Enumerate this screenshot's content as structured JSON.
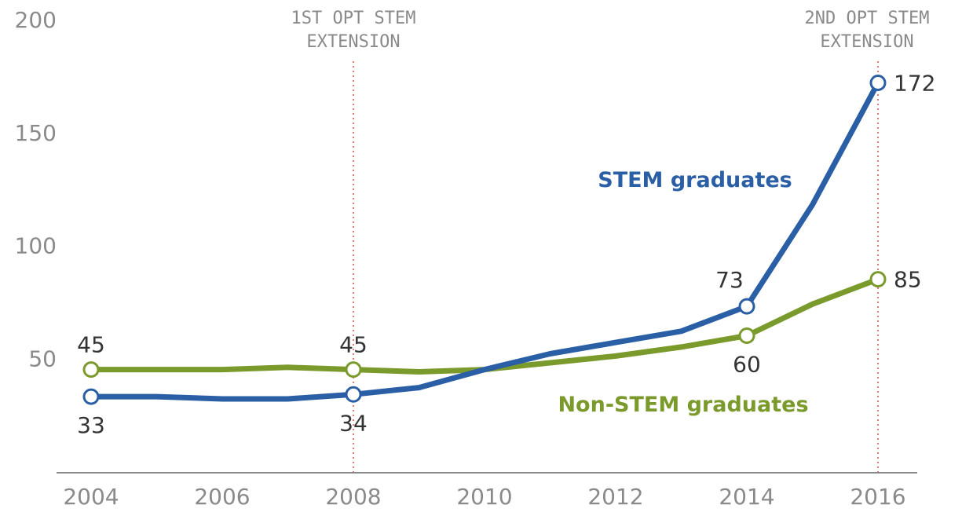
{
  "chart_data": {
    "type": "line",
    "x": [
      2004,
      2005,
      2006,
      2007,
      2008,
      2009,
      2010,
      2011,
      2012,
      2013,
      2014,
      2015,
      2016
    ],
    "xticks": [
      "2004",
      "2006",
      "2008",
      "2010",
      "2012",
      "2014",
      "2016"
    ],
    "yticks": [
      "50",
      "100",
      "150",
      "200"
    ],
    "xlim": [
      2004,
      2016
    ],
    "ylim": [
      0,
      200
    ],
    "grid": false,
    "series": [
      {
        "name": "STEM graduates",
        "color": "#2a5fa5",
        "values": [
          33,
          33,
          32,
          32,
          34,
          37,
          45,
          52,
          57,
          62,
          73,
          118,
          172
        ]
      },
      {
        "name": "Non-STEM graduates",
        "color": "#7b9a2c",
        "values": [
          45,
          45,
          45,
          46,
          45,
          44,
          45,
          48,
          51,
          55,
          60,
          74,
          85
        ]
      }
    ],
    "markers": [
      {
        "series": 0,
        "x": 2004,
        "y": 33,
        "label": "33"
      },
      {
        "series": 0,
        "x": 2008,
        "y": 34,
        "label": "34"
      },
      {
        "series": 0,
        "x": 2014,
        "y": 73,
        "label": "73"
      },
      {
        "series": 0,
        "x": 2016,
        "y": 172,
        "label": "172"
      },
      {
        "series": 1,
        "x": 2004,
        "y": 45,
        "label": "45"
      },
      {
        "series": 1,
        "x": 2008,
        "y": 45,
        "label": "45"
      },
      {
        "series": 1,
        "x": 2014,
        "y": 60,
        "label": "60"
      },
      {
        "series": 1,
        "x": 2016,
        "y": 85,
        "label": "85"
      }
    ],
    "annotations": [
      {
        "x": 2008,
        "lines": [
          "1ST OPT STEM",
          "EXTENSION"
        ]
      },
      {
        "x": 2016,
        "lines": [
          "2ND  OPT STEM",
          "EXTENSION"
        ]
      }
    ],
    "annotation_color": "#e07a7a",
    "axis_color": "#8a8a8a"
  }
}
